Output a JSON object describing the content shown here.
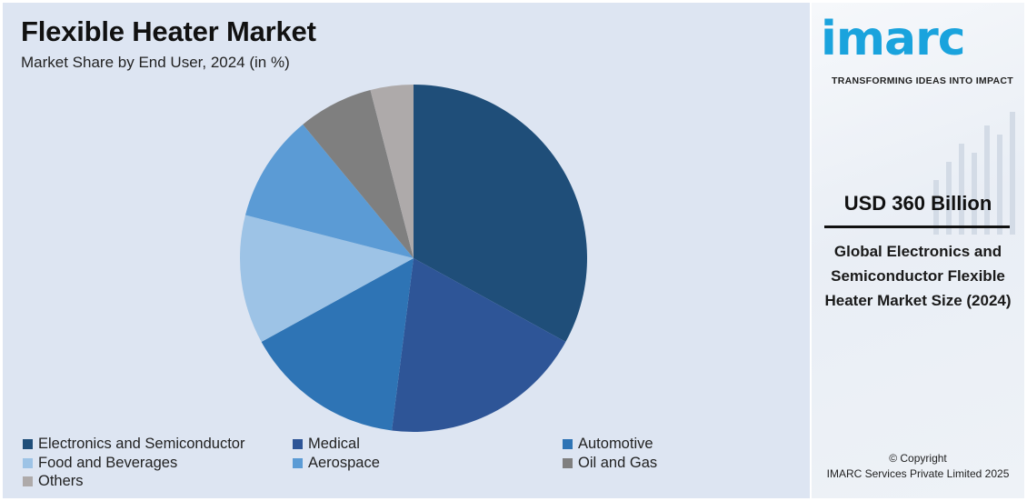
{
  "chart_data": {
    "type": "pie",
    "title": "Flexible Heater Market",
    "subtitle": "Market Share by End User, 2024 (in %)",
    "slices": [
      {
        "label": "Electronics and Semiconductor",
        "value": 33,
        "color": "#1f4e79"
      },
      {
        "label": "Medical",
        "value": 19,
        "color": "#2e5597"
      },
      {
        "label": "Automotive",
        "value": 15,
        "color": "#2e74b5"
      },
      {
        "label": "Food and Beverages",
        "value": 12,
        "color": "#9dc3e6"
      },
      {
        "label": "Aerospace",
        "value": 10,
        "color": "#5b9bd5"
      },
      {
        "label": "Oil and Gas",
        "value": 7,
        "color": "#7f7f7f"
      },
      {
        "label": "Others",
        "value": 4,
        "color": "#aeaaaa"
      }
    ],
    "legend_position": "bottom"
  },
  "side": {
    "logo_text": "imarc",
    "tagline": "TRANSFORMING IDEAS INTO IMPACT",
    "market_value": "USD 360 Billion",
    "market_desc": "Global Electronics and Semiconductor Flexible Heater Market Size (2024)",
    "copyright_line1": "© Copyright",
    "copyright_line2": "IMARC Services Private Limited 2025"
  },
  "colors": {
    "chart_background": "#dde5f2",
    "brand_blue": "#1aa3dd"
  }
}
